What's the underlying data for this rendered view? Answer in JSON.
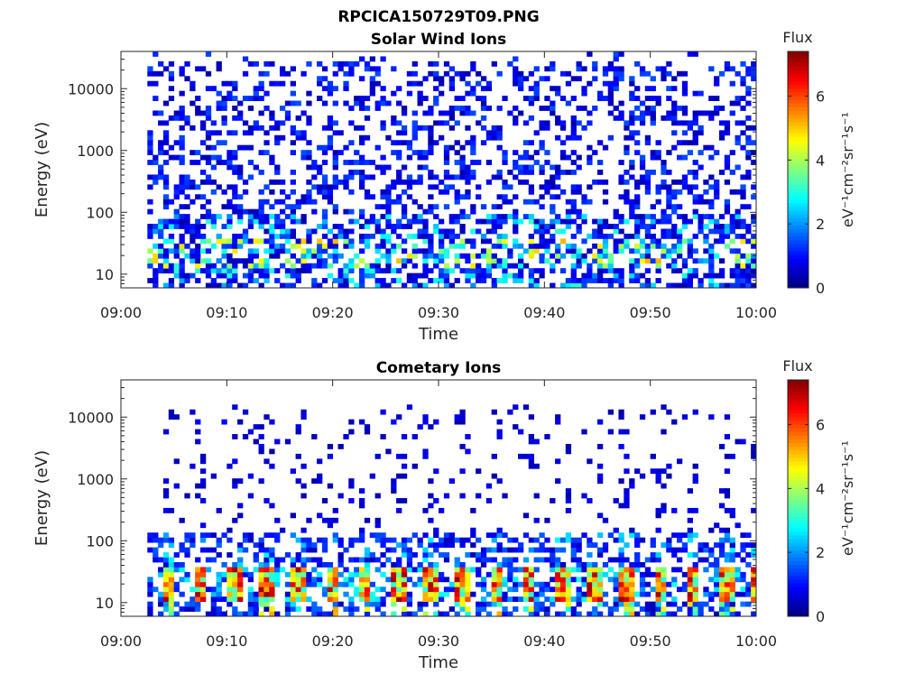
{
  "page_title": "RPCICA150729T09.PNG",
  "chart_data": [
    {
      "type": "heatmap",
      "title": "Solar Wind Ions",
      "xlabel": "Time",
      "ylabel": "Energy (eV)",
      "x_range": [
        "09:00",
        "10:00"
      ],
      "x_ticks": [
        "09:00",
        "09:10",
        "09:20",
        "09:30",
        "09:40",
        "09:50",
        "10:00"
      ],
      "y_scale": "log",
      "y_range": [
        6,
        40000
      ],
      "y_ticks": [
        "10",
        "100",
        "1000",
        "10000"
      ],
      "colorbar": {
        "title": "Flux",
        "label": "eV⁻¹cm⁻²sr⁻¹s⁻¹",
        "range": [
          0,
          7.4
        ],
        "ticks": [
          "0",
          "2",
          "4",
          "6"
        ],
        "colormap": "jet"
      },
      "grid": false,
      "profile": "sparse counts spread across all energies, densest below 100 eV with occasional 2–5 flux enhancements near 20–30 eV"
    },
    {
      "type": "heatmap",
      "title": "Cometary Ions",
      "xlabel": "Time",
      "ylabel": "Energy (eV)",
      "x_range": [
        "09:00",
        "10:00"
      ],
      "x_ticks": [
        "09:00",
        "09:10",
        "09:20",
        "09:30",
        "09:40",
        "09:50",
        "10:00"
      ],
      "y_scale": "log",
      "y_range": [
        6,
        40000
      ],
      "y_ticks": [
        "10",
        "100",
        "1000",
        "10000"
      ],
      "colorbar": {
        "title": "Flux",
        "label": "eV⁻¹cm⁻²sr⁻¹s⁻¹",
        "range": [
          0,
          7.4
        ],
        "ticks": [
          "0",
          "2",
          "4",
          "6"
        ],
        "colormap": "jet"
      },
      "grid": false,
      "profile": "intense periodic bursts (flux 5–7) at 15–35 eV roughly every 3 minutes, sparse low-flux counts above 100 eV"
    }
  ]
}
